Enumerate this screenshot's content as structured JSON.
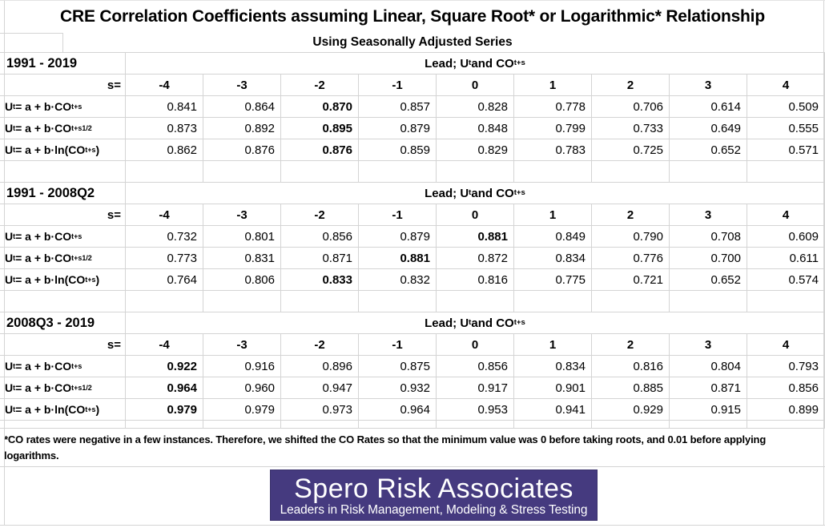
{
  "title": "CRE Correlation Coefficients assuming Linear, Square Root* or Logarithmic* Relationship",
  "subtitle": "Using Seasonally Adjusted Series",
  "lead_header_segments": [
    {
      "t": "text",
      "v": "Lead; U"
    },
    {
      "t": "sub",
      "v": "t"
    },
    {
      "t": "text",
      "v": " and CO"
    },
    {
      "t": "sub",
      "v": "t+s"
    }
  ],
  "s_label": "s=",
  "s_values": [
    "-4",
    "-3",
    "-2",
    "-1",
    "0",
    "1",
    "2",
    "3",
    "4"
  ],
  "model_labels": [
    [
      {
        "t": "text",
        "v": "U"
      },
      {
        "t": "sub",
        "v": "t"
      },
      {
        "t": "text",
        "v": " = a + b·CO"
      },
      {
        "t": "sub",
        "v": "t+s"
      }
    ],
    [
      {
        "t": "text",
        "v": "U"
      },
      {
        "t": "sub",
        "v": "t"
      },
      {
        "t": "text",
        "v": " = a + b·CO"
      },
      {
        "t": "sub",
        "v": "t+s"
      },
      {
        "t": "sup",
        "v": "1/2"
      }
    ],
    [
      {
        "t": "text",
        "v": "U"
      },
      {
        "t": "sub",
        "v": "t"
      },
      {
        "t": "text",
        "v": " = a + b·ln(CO"
      },
      {
        "t": "sub",
        "v": "t+s"
      },
      {
        "t": "text",
        "v": ")"
      }
    ]
  ],
  "sections": [
    {
      "period": "1991 - 2019",
      "rows": [
        {
          "values": [
            "0.841",
            "0.864",
            "0.870",
            "0.857",
            "0.828",
            "0.778",
            "0.706",
            "0.614",
            "0.509"
          ],
          "bold": 2
        },
        {
          "values": [
            "0.873",
            "0.892",
            "0.895",
            "0.879",
            "0.848",
            "0.799",
            "0.733",
            "0.649",
            "0.555"
          ],
          "bold": 2
        },
        {
          "values": [
            "0.862",
            "0.876",
            "0.876",
            "0.859",
            "0.829",
            "0.783",
            "0.725",
            "0.652",
            "0.571"
          ],
          "bold": 2
        }
      ]
    },
    {
      "period": "1991 - 2008Q2",
      "rows": [
        {
          "values": [
            "0.732",
            "0.801",
            "0.856",
            "0.879",
            "0.881",
            "0.849",
            "0.790",
            "0.708",
            "0.609"
          ],
          "bold": 4
        },
        {
          "values": [
            "0.773",
            "0.831",
            "0.871",
            "0.881",
            "0.872",
            "0.834",
            "0.776",
            "0.700",
            "0.611"
          ],
          "bold": 3
        },
        {
          "values": [
            "0.764",
            "0.806",
            "0.833",
            "0.832",
            "0.816",
            "0.775",
            "0.721",
            "0.652",
            "0.574"
          ],
          "bold": 2
        }
      ]
    },
    {
      "period": "2008Q3 - 2019",
      "rows": [
        {
          "values": [
            "0.922",
            "0.916",
            "0.896",
            "0.875",
            "0.856",
            "0.834",
            "0.816",
            "0.804",
            "0.793"
          ],
          "bold": 0
        },
        {
          "values": [
            "0.964",
            "0.960",
            "0.947",
            "0.932",
            "0.917",
            "0.901",
            "0.885",
            "0.871",
            "0.856"
          ],
          "bold": 0
        },
        {
          "values": [
            "0.979",
            "0.979",
            "0.973",
            "0.964",
            "0.953",
            "0.941",
            "0.929",
            "0.915",
            "0.899"
          ],
          "bold": 0
        }
      ]
    }
  ],
  "footnote": "*CO rates were negative in a few instances. Therefore, we shifted the CO Rates so that the minimum value was 0 before taking roots, and 0.01 before applying logarithms.",
  "logo": {
    "name": "Spero Risk Associates",
    "tagline": "Leaders in Risk Management, Modeling & Stress Testing",
    "bg_color": "#453a7f",
    "text_color": "#ffffff"
  },
  "colors": {
    "grid": "#d4d4d4",
    "text": "#000000",
    "background": "#ffffff"
  }
}
